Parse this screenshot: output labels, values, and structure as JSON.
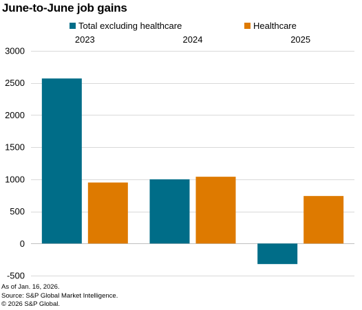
{
  "title": "June-to-June job gains",
  "colors": {
    "total_excluding_healthcare": "#006d88",
    "healthcare": "#de7a00",
    "grid": "#d9d9d9",
    "zero_line": "#bfbfbf"
  },
  "footer": {
    "as_of": "As of Jan. 16, 2026.",
    "source": "Source: S&P Global Market Intelligence.",
    "copyright": "© 2026 S&P Global."
  },
  "chart_data": {
    "type": "bar",
    "categories": [
      "2023",
      "2024",
      "2025"
    ],
    "series": [
      {
        "name": "Total excluding healthcare",
        "values": [
          2570,
          1000,
          -320
        ]
      },
      {
        "name": "Healthcare",
        "values": [
          950,
          1040,
          740
        ]
      }
    ],
    "yticks": [
      3000,
      2500,
      2000,
      1500,
      1000,
      500,
      0,
      -500
    ],
    "ylim": [
      -500,
      3000
    ],
    "category_labels_position": "top",
    "legend_position": "top",
    "grid": true
  }
}
